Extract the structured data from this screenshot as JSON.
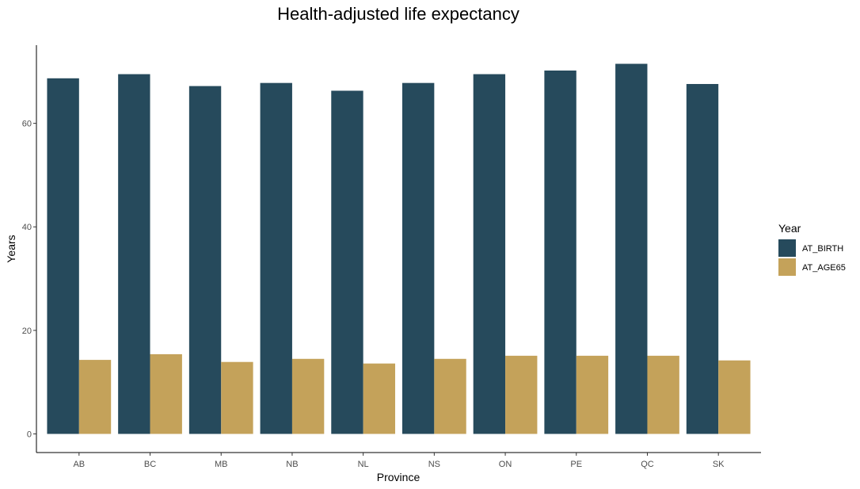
{
  "chart_data": {
    "type": "bar",
    "title": "Health-adjusted life expectancy",
    "xlabel": "Province",
    "ylabel": "Years",
    "categories": [
      "AB",
      "BC",
      "MB",
      "NB",
      "NL",
      "NS",
      "ON",
      "PE",
      "QC",
      "SK"
    ],
    "series": [
      {
        "name": "AT_BIRTH",
        "color": "#264a5c",
        "values": [
          68.7,
          69.5,
          67.2,
          67.8,
          66.3,
          67.8,
          69.5,
          70.2,
          71.5,
          67.6
        ]
      },
      {
        "name": "AT_AGE65",
        "color": "#c4a25a",
        "values": [
          14.3,
          15.4,
          13.9,
          14.5,
          13.6,
          14.5,
          15.1,
          15.1,
          15.1,
          14.2
        ]
      }
    ],
    "yticks": [
      0,
      20,
      40,
      60
    ],
    "ylim": [
      -3.6,
      75.1
    ],
    "grid": false,
    "legend": {
      "title": "Year",
      "position": "right"
    }
  }
}
